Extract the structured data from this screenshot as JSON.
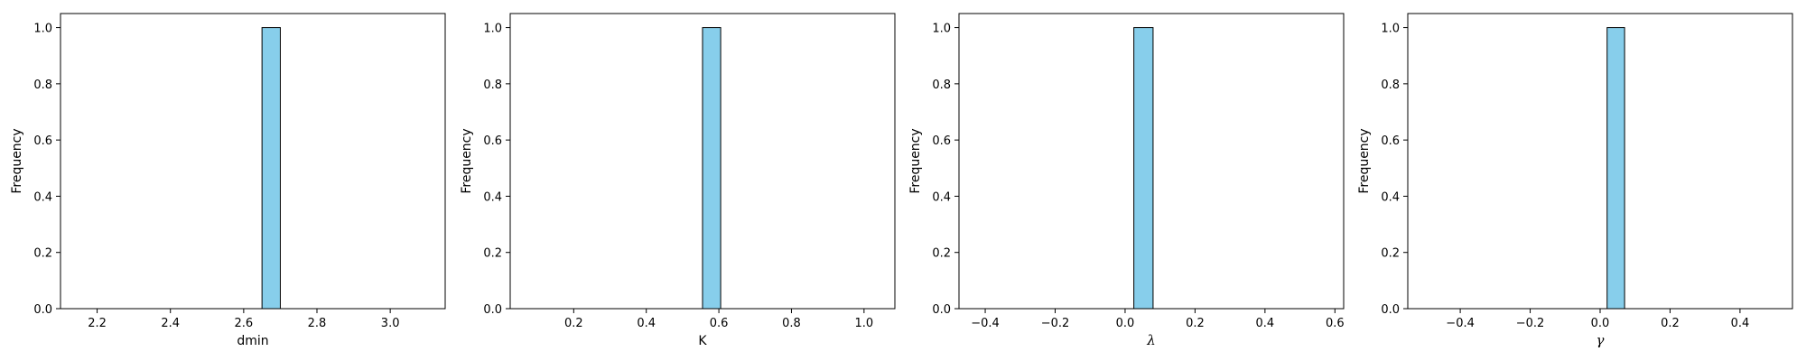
{
  "chart_data": [
    {
      "type": "bar",
      "xlabel": "dmin",
      "xlabel_italic": false,
      "ylabel": "Frequency",
      "xlim": [
        2.1,
        3.15
      ],
      "ylim": [
        0,
        1.05
      ],
      "xticks": [
        2.2,
        2.4,
        2.6,
        2.8,
        3.0
      ],
      "xtick_labels": [
        "2.2",
        "2.4",
        "2.6",
        "2.8",
        "3.0"
      ],
      "yticks": [
        0,
        0.2,
        0.4,
        0.6,
        0.8,
        1.0
      ],
      "ytick_labels": [
        "0.0",
        "0.2",
        "0.4",
        "0.6",
        "0.8",
        "1.0"
      ],
      "bins": [
        2.15,
        2.2,
        2.25,
        2.3,
        2.35,
        2.4,
        2.45,
        2.5,
        2.55,
        2.6,
        2.65,
        2.7,
        2.75,
        2.8,
        2.85,
        2.9,
        2.95,
        3.0,
        3.05,
        3.1,
        3.15
      ],
      "counts": [
        0,
        0,
        0,
        0,
        0,
        0,
        0,
        0,
        0,
        0,
        1,
        0,
        0,
        0,
        0,
        0,
        0,
        0,
        0,
        0
      ],
      "bar_color": "#87ceeb",
      "edge_color": "#000000"
    },
    {
      "type": "bar",
      "xlabel": "K",
      "xlabel_italic": false,
      "ylabel": "Frequency",
      "xlim": [
        0.025,
        1.085
      ],
      "ylim": [
        0,
        1.05
      ],
      "xticks": [
        0.2,
        0.4,
        0.6,
        0.8,
        1.0
      ],
      "xtick_labels": [
        "0.2",
        "0.4",
        "0.6",
        "0.8",
        "1.0"
      ],
      "yticks": [
        0,
        0.2,
        0.4,
        0.6,
        0.8,
        1.0
      ],
      "ytick_labels": [
        "0.0",
        "0.2",
        "0.4",
        "0.6",
        "0.8",
        "1.0"
      ],
      "bins": [
        0.055,
        0.105,
        0.155,
        0.205,
        0.255,
        0.305,
        0.355,
        0.405,
        0.455,
        0.505,
        0.555,
        0.605,
        0.655,
        0.705,
        0.755,
        0.805,
        0.855,
        0.905,
        0.955,
        1.005,
        1.055
      ],
      "counts": [
        0,
        0,
        0,
        0,
        0,
        0,
        0,
        0,
        0,
        0,
        1,
        0,
        0,
        0,
        0,
        0,
        0,
        0,
        0,
        0
      ],
      "bar_color": "#87ceeb",
      "edge_color": "#000000"
    },
    {
      "type": "bar",
      "xlabel": "λ",
      "xlabel_italic": true,
      "ylabel": "Frequency",
      "xlim": [
        -0.475,
        0.625
      ],
      "ylim": [
        0,
        1.05
      ],
      "xticks": [
        -0.4,
        -0.2,
        0.0,
        0.2,
        0.4,
        0.6
      ],
      "xtick_labels": [
        "−0.4",
        "−0.2",
        "0.0",
        "0.2",
        "0.4",
        "0.6"
      ],
      "yticks": [
        0,
        0.2,
        0.4,
        0.6,
        0.8,
        1.0
      ],
      "ytick_labels": [
        "0.0",
        "0.2",
        "0.4",
        "0.6",
        "0.8",
        "1.0"
      ],
      "bins": [
        -0.45,
        -0.395,
        -0.34,
        -0.285,
        -0.23,
        -0.175,
        -0.12,
        -0.065,
        -0.01,
        0.025,
        0.08,
        0.135,
        0.19,
        0.245,
        0.3,
        0.355,
        0.41,
        0.465,
        0.52,
        0.575
      ],
      "counts": [
        0,
        0,
        0,
        0,
        0,
        0,
        0,
        0,
        0,
        1,
        0,
        0,
        0,
        0,
        0,
        0,
        0,
        0,
        0
      ],
      "bar_color": "#87ceeb",
      "edge_color": "#000000"
    },
    {
      "type": "bar",
      "xlabel": "γ",
      "xlabel_italic": true,
      "ylabel": "Frequency",
      "xlim": [
        -0.55,
        0.55
      ],
      "ylim": [
        0,
        1.05
      ],
      "xticks": [
        -0.4,
        -0.2,
        0.0,
        0.2,
        0.4
      ],
      "xtick_labels": [
        "−0.4",
        "−0.2",
        "0.0",
        "0.2",
        "0.4"
      ],
      "yticks": [
        0,
        0.2,
        0.4,
        0.6,
        0.8,
        1.0
      ],
      "ytick_labels": [
        "0.0",
        "0.2",
        "0.4",
        "0.6",
        "0.8",
        "1.0"
      ],
      "bins": [
        -0.5,
        -0.45,
        -0.4,
        -0.35,
        -0.3,
        -0.25,
        -0.2,
        -0.15,
        -0.1,
        -0.05,
        0.0,
        0.02,
        0.07,
        0.12,
        0.17,
        0.22,
        0.27,
        0.32,
        0.37,
        0.42,
        0.47,
        0.52
      ],
      "counts": [
        0,
        0,
        0,
        0,
        0,
        0,
        0,
        0,
        0,
        0,
        0,
        1,
        0,
        0,
        0,
        0,
        0,
        0,
        0,
        0,
        0
      ],
      "bar_color": "#87ceeb",
      "edge_color": "#000000"
    }
  ]
}
